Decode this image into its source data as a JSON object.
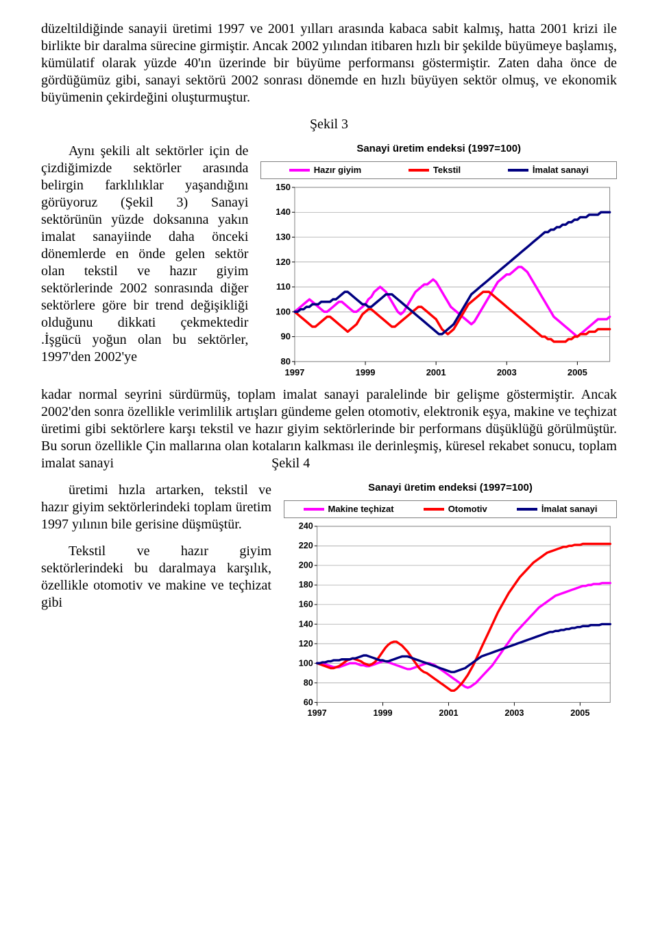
{
  "para1": "düzeltildiğinde sanayii üretimi 1997 ve 2001 yılları arasında kabaca sabit kalmış, hatta 2001 krizi ile birlikte bir daralma sürecine girmiştir. Ancak 2002 yılından itibaren hızlı bir şekilde büyümeye başlamış, kümülatif olarak yüzde 40'ın üzerinde bir büyüme performansı göstermiştir. Zaten daha önce de gördüğümüz gibi, sanayi sektörü 2002 sonrası dönemde en hızlı büyüyen sektör olmuş, ve ekonomik büyümenin çekirdeğini oluşturmuştur.",
  "sekil3": "Şekil 3",
  "para2_left": "Aynı şekili alt sektörler için de çizdiğimizde sektörler arasında belirgin farklılıklar yaşandığını görüyoruz (Şekil 3) Sanayi sektörünün yüzde doksanına yakın imalat sanayiinde daha önceki dönemlerde en önde gelen sektör olan  tekstil ve hazır giyim sektörlerinde 2002 sonrasında diğer sektörlere göre bir trend değişikliği olduğunu dikkati çekmektedir .İşgücü yoğun olan bu sektörler, 1997'den 2002'ye",
  "para2_after": "kadar normal seyrini sürdürmüş, toplam imalat sanayi paralelinde bir gelişme göstermiştir. Ancak 2002'den sonra özellikle verimlilik artışları gündeme gelen otomotiv, elektronik eşya,  makine ve teçhizat üretimi gibi sektörlere karşı tekstil ve hazır giyim sektörlerinde bir performans düşüklüğü görülmüştür. Bu sorun özellikle Çin mallarına olan kotaların kalkması ile derinleşmiş, küresel rekabet sonucu, toplam imalat sanayi",
  "sekil4": "Şekil 4",
  "para3_left_a": "üretimi hızla artarken, tekstil ve hazır giyim sektörlerindeki toplam üretim 1997 yılının bile gerisine düşmüştür.",
  "para3_left_b": "Tekstil ve hazır giyim sektörlerindeki bu daralmaya karşılık, özellikle otomotiv ve makine ve teçhizat gibi",
  "chart3": {
    "title": "Sanayi üretim endeksi (1997=100)",
    "series": [
      {
        "name": "Hazır giyim",
        "color": "#ff00ff"
      },
      {
        "name": "Tekstil",
        "color": "#ff0000"
      },
      {
        "name": "İmalat sanayi",
        "color": "#000080"
      }
    ],
    "ylim": [
      80,
      150
    ],
    "ystep": 10,
    "xyears": [
      "1997",
      "1999",
      "2001",
      "2003",
      "2005"
    ],
    "background": "#ffffff",
    "grid": "#808080",
    "plot_border": "#808080",
    "line_width": 3.5,
    "n": 108,
    "data": {
      "hazir": [
        100,
        101,
        102,
        103,
        104,
        105,
        104,
        103,
        102,
        101,
        100,
        100,
        101,
        102,
        103,
        104,
        104,
        103,
        102,
        101,
        100,
        100,
        101,
        102,
        103,
        105,
        106,
        108,
        109,
        110,
        109,
        108,
        106,
        104,
        102,
        100,
        99,
        100,
        102,
        104,
        106,
        108,
        109,
        110,
        111,
        111,
        112,
        113,
        112,
        110,
        108,
        106,
        104,
        102,
        101,
        100,
        99,
        98,
        97,
        96,
        95,
        96,
        98,
        100,
        102,
        104,
        106,
        108,
        110,
        112,
        113,
        114,
        115,
        115,
        116,
        117,
        118,
        118,
        117,
        116,
        114,
        112,
        110,
        108,
        106,
        104,
        102,
        100,
        98,
        97,
        96,
        95,
        94,
        93,
        92,
        91,
        90,
        91,
        92,
        93,
        94,
        95,
        96,
        97,
        97,
        97,
        97,
        98
      ],
      "tekstil": [
        100,
        99,
        98,
        97,
        96,
        95,
        94,
        94,
        95,
        96,
        97,
        98,
        98,
        97,
        96,
        95,
        94,
        93,
        92,
        93,
        94,
        95,
        97,
        99,
        100,
        101,
        101,
        100,
        99,
        98,
        97,
        96,
        95,
        94,
        94,
        95,
        96,
        97,
        98,
        99,
        100,
        101,
        102,
        102,
        101,
        100,
        99,
        98,
        97,
        95,
        93,
        92,
        91,
        92,
        93,
        95,
        97,
        99,
        101,
        103,
        104,
        105,
        106,
        107,
        108,
        108,
        108,
        107,
        106,
        105,
        104,
        103,
        102,
        101,
        100,
        99,
        98,
        97,
        96,
        95,
        94,
        93,
        92,
        91,
        90,
        90,
        89,
        89,
        88,
        88,
        88,
        88,
        88,
        89,
        89,
        90,
        90,
        91,
        91,
        91,
        92,
        92,
        92,
        93,
        93,
        93,
        93,
        93
      ],
      "imalat": [
        100,
        100,
        101,
        101,
        102,
        102,
        103,
        103,
        103,
        104,
        104,
        104,
        104,
        105,
        105,
        106,
        107,
        108,
        108,
        107,
        106,
        105,
        104,
        103,
        103,
        102,
        102,
        103,
        104,
        105,
        106,
        107,
        107,
        107,
        106,
        105,
        104,
        103,
        102,
        101,
        100,
        99,
        98,
        97,
        96,
        95,
        94,
        93,
        92,
        91,
        91,
        92,
        93,
        94,
        95,
        97,
        99,
        101,
        103,
        105,
        107,
        108,
        109,
        110,
        111,
        112,
        113,
        114,
        115,
        116,
        117,
        118,
        119,
        120,
        121,
        122,
        123,
        124,
        125,
        126,
        127,
        128,
        129,
        130,
        131,
        132,
        132,
        133,
        133,
        134,
        134,
        135,
        135,
        136,
        136,
        137,
        137,
        138,
        138,
        138,
        139,
        139,
        139,
        139,
        140,
        140,
        140,
        140
      ]
    }
  },
  "chart4": {
    "title": "Sanayi üretim endeksi (1997=100)",
    "series": [
      {
        "name": "Makine teçhizat",
        "color": "#ff00ff"
      },
      {
        "name": "Otomotiv",
        "color": "#ff0000"
      },
      {
        "name": "İmalat sanayi",
        "color": "#000080"
      }
    ],
    "ylim": [
      60,
      240
    ],
    "ystep": 20,
    "xyears": [
      "1997",
      "1999",
      "2001",
      "2003",
      "2005"
    ],
    "background": "#ffffff",
    "grid": "#808080",
    "plot_border": "#808080",
    "line_width": 3.5,
    "n": 108,
    "data": {
      "makine": [
        100,
        100,
        100,
        99,
        98,
        97,
        96,
        96,
        96,
        97,
        98,
        99,
        100,
        100,
        100,
        99,
        98,
        98,
        97,
        97,
        98,
        99,
        100,
        101,
        102,
        102,
        101,
        100,
        99,
        98,
        97,
        96,
        95,
        94,
        94,
        95,
        96,
        97,
        98,
        99,
        100,
        100,
        99,
        98,
        96,
        94,
        92,
        90,
        88,
        86,
        84,
        82,
        80,
        78,
        76,
        75,
        76,
        78,
        80,
        83,
        86,
        89,
        92,
        95,
        98,
        102,
        106,
        110,
        114,
        118,
        122,
        126,
        130,
        133,
        136,
        139,
        142,
        145,
        148,
        151,
        154,
        157,
        159,
        161,
        163,
        165,
        167,
        169,
        170,
        171,
        172,
        173,
        174,
        175,
        176,
        177,
        178,
        179,
        179,
        180,
        180,
        181,
        181,
        181,
        182,
        182,
        182,
        182
      ],
      "otomotiv": [
        100,
        99,
        98,
        97,
        96,
        95,
        95,
        96,
        97,
        99,
        101,
        103,
        104,
        105,
        104,
        103,
        102,
        100,
        99,
        98,
        99,
        101,
        104,
        108,
        112,
        116,
        119,
        121,
        122,
        122,
        120,
        118,
        115,
        112,
        108,
        104,
        100,
        96,
        93,
        91,
        90,
        88,
        86,
        84,
        82,
        80,
        78,
        76,
        74,
        72,
        72,
        74,
        77,
        80,
        84,
        88,
        93,
        98,
        104,
        110,
        116,
        122,
        128,
        134,
        140,
        146,
        152,
        157,
        162,
        167,
        172,
        176,
        180,
        184,
        188,
        191,
        194,
        197,
        200,
        203,
        205,
        207,
        209,
        211,
        213,
        214,
        215,
        216,
        217,
        218,
        219,
        219,
        220,
        220,
        221,
        221,
        221,
        222,
        222,
        222,
        222,
        222,
        222,
        222,
        222,
        222,
        222,
        222
      ],
      "imalat": [
        100,
        100,
        101,
        101,
        102,
        102,
        103,
        103,
        103,
        104,
        104,
        104,
        104,
        105,
        105,
        106,
        107,
        108,
        108,
        107,
        106,
        105,
        104,
        103,
        103,
        102,
        102,
        103,
        104,
        105,
        106,
        107,
        107,
        107,
        106,
        105,
        104,
        103,
        102,
        101,
        100,
        99,
        98,
        97,
        96,
        95,
        94,
        93,
        92,
        91,
        91,
        92,
        93,
        94,
        95,
        97,
        99,
        101,
        103,
        105,
        107,
        108,
        109,
        110,
        111,
        112,
        113,
        114,
        115,
        116,
        117,
        118,
        119,
        120,
        121,
        122,
        123,
        124,
        125,
        126,
        127,
        128,
        129,
        130,
        131,
        132,
        132,
        133,
        133,
        134,
        134,
        135,
        135,
        136,
        136,
        137,
        137,
        138,
        138,
        138,
        139,
        139,
        139,
        139,
        140,
        140,
        140,
        140
      ]
    }
  }
}
